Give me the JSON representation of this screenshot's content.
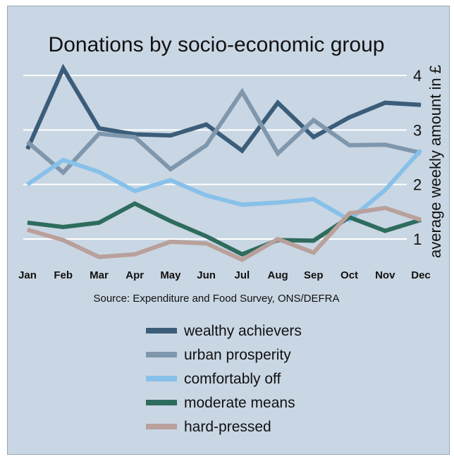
{
  "chart_data": {
    "type": "line",
    "title": "Donations by socio-economic group",
    "xlabel": "",
    "ylabel": "average weekly amount in £",
    "source": "Source: Expenditure and Food Survey, ONS/DEFRA",
    "categories": [
      "Jan",
      "Feb",
      "Mar",
      "Apr",
      "May",
      "Jun",
      "Jul",
      "Aug",
      "Sep",
      "Oct",
      "Nov",
      "Dec"
    ],
    "ylim": [
      0.6,
      4.2
    ],
    "yticks": [
      1,
      2,
      3,
      4
    ],
    "grid": true,
    "legend_position": "bottom",
    "y_axis_side": "right",
    "series": [
      {
        "name": "wealthy achievers",
        "color": "#3b5d7a",
        "values": [
          2.65,
          4.13,
          3.03,
          2.92,
          2.9,
          3.1,
          2.62,
          3.5,
          2.87,
          3.23,
          3.5,
          3.46
        ]
      },
      {
        "name": "urban prosperity",
        "color": "#7f97ad",
        "values": [
          2.78,
          2.22,
          2.93,
          2.87,
          2.28,
          2.72,
          3.7,
          2.57,
          3.18,
          2.72,
          2.73,
          2.58
        ]
      },
      {
        "name": "comfortably off",
        "color": "#87c1ea",
        "values": [
          2.0,
          2.45,
          2.23,
          1.88,
          2.08,
          1.8,
          1.63,
          1.67,
          1.73,
          1.35,
          1.9,
          2.63
        ]
      },
      {
        "name": "moderate means",
        "color": "#2e6c5e",
        "values": [
          1.3,
          1.22,
          1.3,
          1.65,
          1.33,
          1.05,
          0.72,
          0.98,
          0.97,
          1.4,
          1.15,
          1.35
        ]
      },
      {
        "name": "hard-pressed",
        "color": "#b9a09b",
        "values": [
          1.17,
          0.98,
          0.67,
          0.72,
          0.95,
          0.92,
          0.62,
          1.0,
          0.75,
          1.47,
          1.57,
          1.35
        ]
      }
    ]
  }
}
